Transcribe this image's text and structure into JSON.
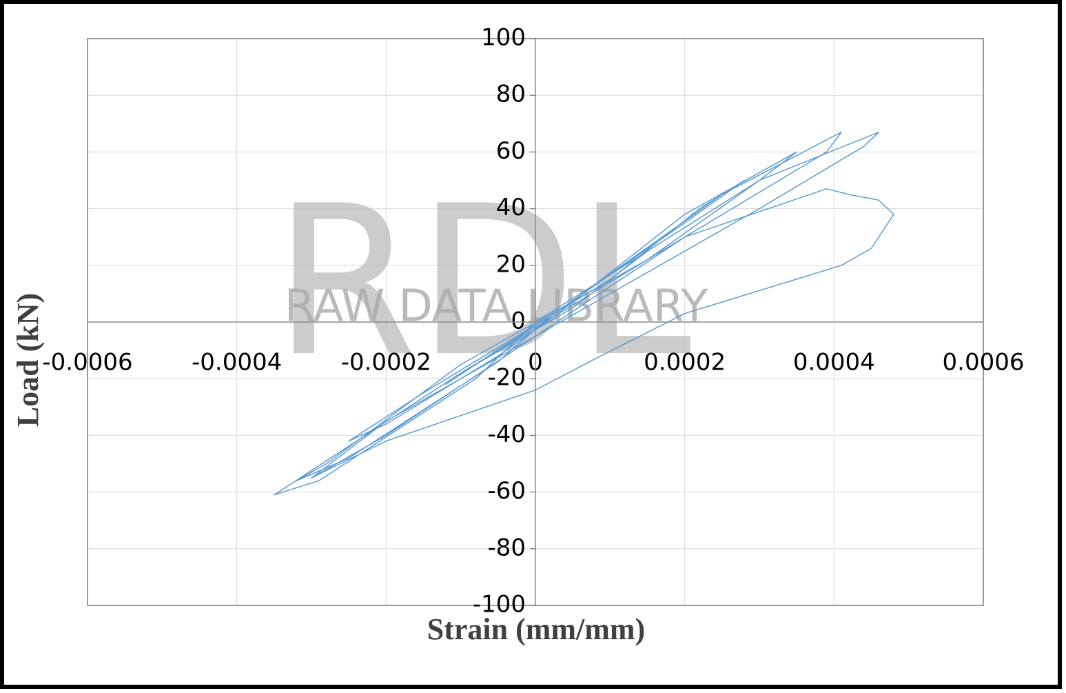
{
  "chart_data": {
    "type": "line",
    "x_label": "Strain (mm/mm)",
    "y_label": "Load (kN)",
    "watermark": {
      "logo": "RDL",
      "text": "RAW DATA LIBRARY"
    },
    "color": "#5b9bd5",
    "grid": true,
    "xlim": [
      -0.0006,
      0.0006
    ],
    "xticks": [
      -0.0006,
      -0.0004,
      -0.0002,
      0,
      0.0002,
      0.0004,
      0.0006
    ],
    "ylim": [
      -100,
      100
    ],
    "yticks": [
      -100,
      -80,
      -60,
      -40,
      -20,
      0,
      20,
      40,
      60,
      80,
      100
    ],
    "x": [
      0,
      0.00012,
      0.00015,
      5e-05,
      -8e-05,
      -0.00012,
      -4e-05,
      2e-05,
      0.0002,
      0.00028,
      0.00022,
      0.0001,
      -0.00015,
      -0.00025,
      -0.0002,
      -5e-05,
      3e-05,
      0.0002,
      0.00035,
      0.0003,
      0.00015,
      -0.0001,
      -0.00028,
      -0.00032,
      -0.00025,
      -5e-05,
      2e-05,
      0.00025,
      0.00041,
      0.00039,
      0.0002,
      -0.0001,
      -0.00035,
      -0.00029,
      -8e-05,
      0,
      0.0003,
      0.00046,
      0.00044,
      0.0003,
      0.0001,
      -0.0002,
      -0.0003,
      -0.0002,
      0,
      0.0002,
      0.00039,
      0.00042,
      0.00046,
      0.00048,
      0.00045,
      0.00041,
      0.0002,
      8e-05,
      0,
      -0.0002,
      -0.0003
    ],
    "values": [
      0,
      20,
      25,
      5,
      -15,
      -22,
      -8,
      2,
      35,
      50,
      40,
      15,
      -25,
      -42,
      -36,
      -12,
      3,
      38,
      60,
      50,
      22,
      -15,
      -50,
      -56,
      -48,
      -14,
      2,
      45,
      67,
      60,
      30,
      -18,
      -61,
      -56,
      -20,
      0,
      50,
      67,
      62,
      40,
      10,
      -35,
      -55,
      -40,
      -5,
      30,
      47,
      45,
      43,
      38,
      26,
      20,
      3,
      -13,
      -24,
      -42,
      -55
    ]
  }
}
